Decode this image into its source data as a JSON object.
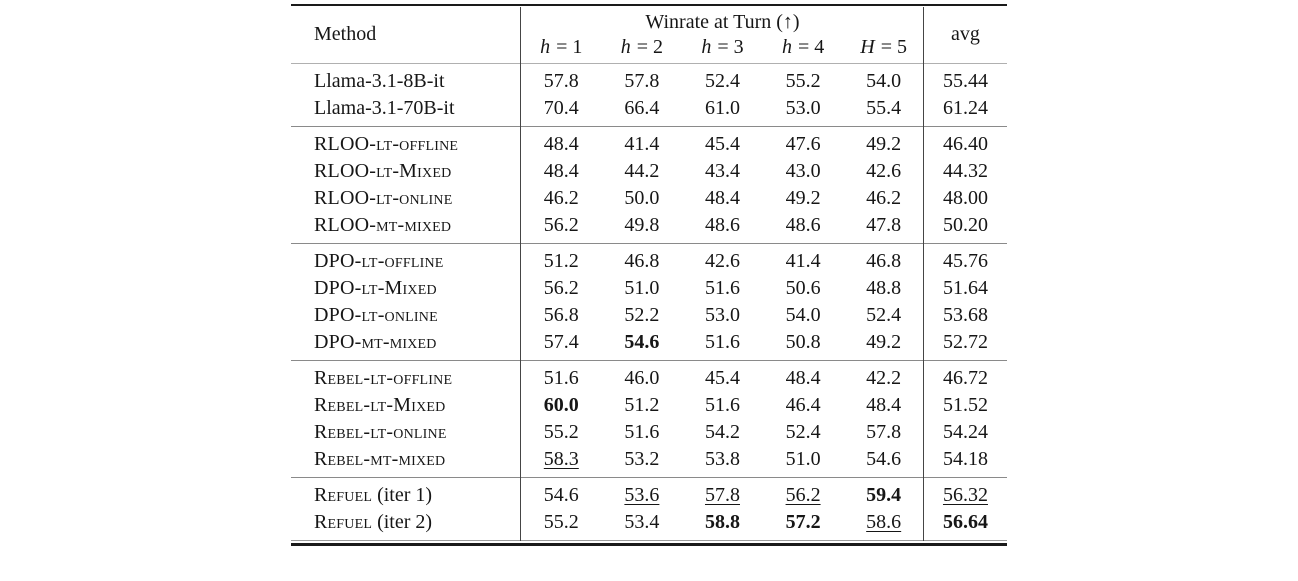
{
  "colors": {
    "text": "#161616",
    "heavy_rule": "#1a1a1a",
    "group_rule": "#8a8a8a",
    "header_rule": "#b0b0b0",
    "vertical_rule": "#454545",
    "background": "#ffffff"
  },
  "table": {
    "header": {
      "method_label": "Method",
      "winrate_label": "Winrate at Turn (↑)",
      "turn_columns": [
        {
          "var": "h",
          "rest": " = 1"
        },
        {
          "var": "h",
          "rest": " = 2"
        },
        {
          "var": "h",
          "rest": " = 3"
        },
        {
          "var": "h",
          "rest": " = 4"
        },
        {
          "var": "H",
          "rest": " = 5"
        }
      ],
      "avg_label": "avg"
    },
    "groups": [
      {
        "rows": [
          {
            "method": {
              "sc": "",
              "plain": "Llama-3.1-8B-it"
            },
            "cells": [
              {
                "v": "57.8"
              },
              {
                "v": "57.8"
              },
              {
                "v": "52.4"
              },
              {
                "v": "55.2"
              },
              {
                "v": "54.0"
              },
              {
                "v": "55.44"
              }
            ]
          },
          {
            "method": {
              "sc": "",
              "plain": "Llama-3.1-70B-it"
            },
            "cells": [
              {
                "v": "70.4"
              },
              {
                "v": "66.4"
              },
              {
                "v": "61.0"
              },
              {
                "v": "53.0"
              },
              {
                "v": "55.4"
              },
              {
                "v": "61.24"
              }
            ]
          }
        ]
      },
      {
        "rows": [
          {
            "method": {
              "sc": "RLOO-lt-offline",
              "plain": ""
            },
            "cells": [
              {
                "v": "48.4"
              },
              {
                "v": "41.4"
              },
              {
                "v": "45.4"
              },
              {
                "v": "47.6"
              },
              {
                "v": "49.2"
              },
              {
                "v": "46.40"
              }
            ]
          },
          {
            "method": {
              "sc": "RLOO-lt-Mixed",
              "plain": ""
            },
            "cells": [
              {
                "v": "48.4"
              },
              {
                "v": "44.2"
              },
              {
                "v": "43.4"
              },
              {
                "v": "43.0"
              },
              {
                "v": "42.6"
              },
              {
                "v": "44.32"
              }
            ]
          },
          {
            "method": {
              "sc": "RLOO-lt-online",
              "plain": ""
            },
            "cells": [
              {
                "v": "46.2"
              },
              {
                "v": "50.0"
              },
              {
                "v": "48.4"
              },
              {
                "v": "49.2"
              },
              {
                "v": "46.2"
              },
              {
                "v": "48.00"
              }
            ]
          },
          {
            "method": {
              "sc": "RLOO-mt-mixed",
              "plain": ""
            },
            "cells": [
              {
                "v": "56.2"
              },
              {
                "v": "49.8"
              },
              {
                "v": "48.6"
              },
              {
                "v": "48.6"
              },
              {
                "v": "47.8"
              },
              {
                "v": "50.20"
              }
            ]
          }
        ]
      },
      {
        "rows": [
          {
            "method": {
              "sc": "DPO-lt-offline",
              "plain": ""
            },
            "cells": [
              {
                "v": "51.2"
              },
              {
                "v": "46.8"
              },
              {
                "v": "42.6"
              },
              {
                "v": "41.4"
              },
              {
                "v": "46.8"
              },
              {
                "v": "45.76"
              }
            ]
          },
          {
            "method": {
              "sc": "DPO-lt-Mixed",
              "plain": ""
            },
            "cells": [
              {
                "v": "56.2"
              },
              {
                "v": "51.0"
              },
              {
                "v": "51.6"
              },
              {
                "v": "50.6"
              },
              {
                "v": "48.8"
              },
              {
                "v": "51.64"
              }
            ]
          },
          {
            "method": {
              "sc": "DPO-lt-online",
              "plain": ""
            },
            "cells": [
              {
                "v": "56.8"
              },
              {
                "v": "52.2"
              },
              {
                "v": "53.0"
              },
              {
                "v": "54.0"
              },
              {
                "v": "52.4"
              },
              {
                "v": "53.68"
              }
            ]
          },
          {
            "method": {
              "sc": "DPO-mt-mixed",
              "plain": ""
            },
            "cells": [
              {
                "v": "57.4"
              },
              {
                "v": "54.6",
                "style": "bold"
              },
              {
                "v": "51.6"
              },
              {
                "v": "50.8"
              },
              {
                "v": "49.2"
              },
              {
                "v": "52.72"
              }
            ]
          }
        ]
      },
      {
        "rows": [
          {
            "method": {
              "sc": "Rebel-lt-offline",
              "plain": ""
            },
            "cells": [
              {
                "v": "51.6"
              },
              {
                "v": "46.0"
              },
              {
                "v": "45.4"
              },
              {
                "v": "48.4"
              },
              {
                "v": "42.2"
              },
              {
                "v": "46.72"
              }
            ]
          },
          {
            "method": {
              "sc": "Rebel-lt-Mixed",
              "plain": ""
            },
            "cells": [
              {
                "v": "60.0",
                "style": "bold"
              },
              {
                "v": "51.2"
              },
              {
                "v": "51.6"
              },
              {
                "v": "46.4"
              },
              {
                "v": "48.4"
              },
              {
                "v": "51.52"
              }
            ]
          },
          {
            "method": {
              "sc": "Rebel-lt-online",
              "plain": ""
            },
            "cells": [
              {
                "v": "55.2"
              },
              {
                "v": "51.6"
              },
              {
                "v": "54.2"
              },
              {
                "v": "52.4"
              },
              {
                "v": "57.8"
              },
              {
                "v": "54.24"
              }
            ]
          },
          {
            "method": {
              "sc": "Rebel-mt-mixed",
              "plain": ""
            },
            "cells": [
              {
                "v": "58.3",
                "style": "underline"
              },
              {
                "v": "53.2"
              },
              {
                "v": "53.8"
              },
              {
                "v": "51.0"
              },
              {
                "v": "54.6"
              },
              {
                "v": "54.18"
              }
            ]
          }
        ]
      },
      {
        "rows": [
          {
            "method": {
              "sc": "Refuel",
              "plain": " (iter 1)"
            },
            "cells": [
              {
                "v": "54.6"
              },
              {
                "v": "53.6",
                "style": "underline"
              },
              {
                "v": "57.8",
                "style": "underline"
              },
              {
                "v": "56.2",
                "style": "underline"
              },
              {
                "v": "59.4",
                "style": "bold"
              },
              {
                "v": "56.32",
                "style": "underline"
              }
            ]
          },
          {
            "method": {
              "sc": "Refuel",
              "plain": " (iter 2)"
            },
            "cells": [
              {
                "v": "55.2"
              },
              {
                "v": "53.4"
              },
              {
                "v": "58.8",
                "style": "bold"
              },
              {
                "v": "57.2",
                "style": "bold"
              },
              {
                "v": "58.6",
                "style": "underline"
              },
              {
                "v": "56.64",
                "style": "bold"
              }
            ]
          }
        ]
      }
    ]
  }
}
